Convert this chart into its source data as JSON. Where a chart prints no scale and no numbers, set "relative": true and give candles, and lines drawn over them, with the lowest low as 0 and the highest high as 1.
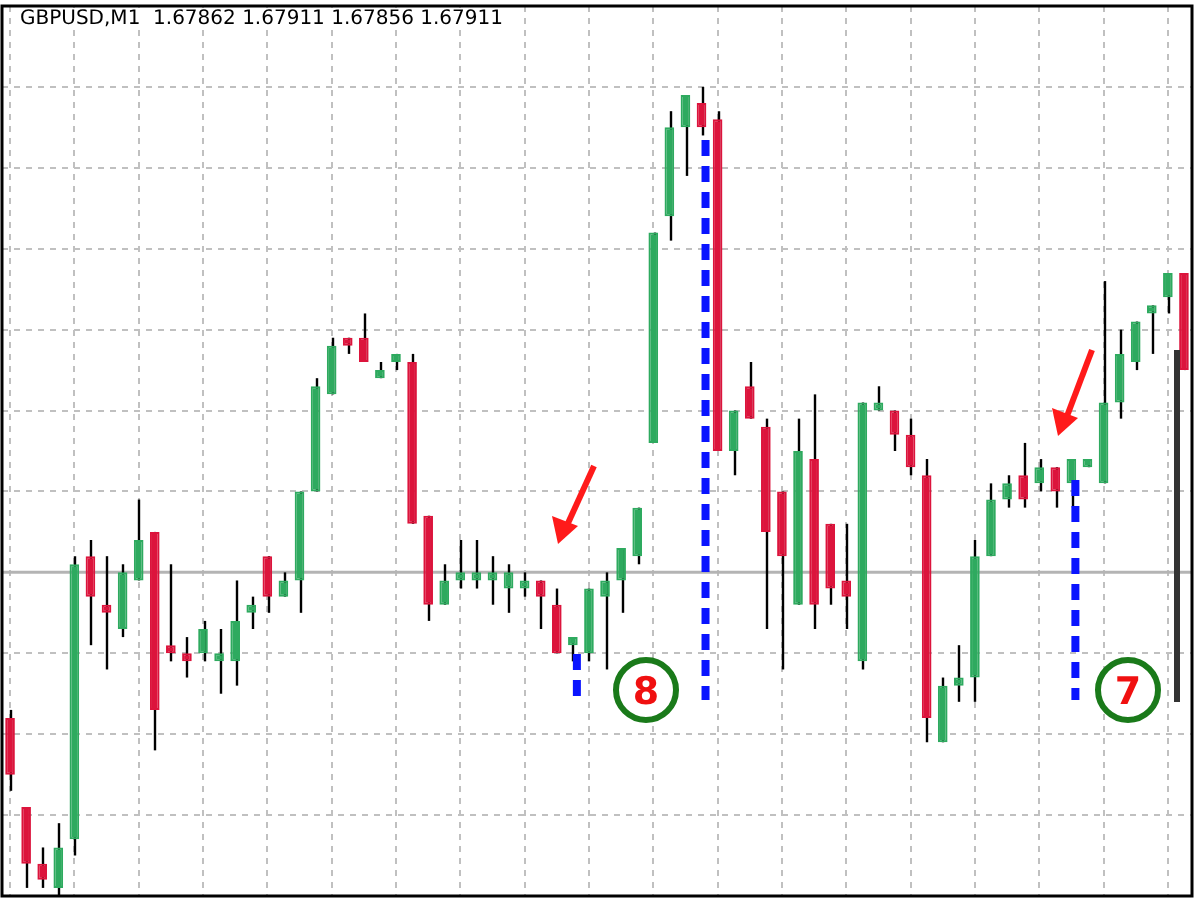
{
  "chart_data": {
    "type": "candlestick",
    "title": "GBPUSD,M1  1.67862 1.67911 1.67856 1.67911",
    "relative": true,
    "grid": true,
    "tick_labels": false,
    "categories": [
      null,
      null,
      null,
      null,
      null,
      null,
      null,
      null,
      null,
      null,
      null,
      null,
      null,
      null,
      null,
      null,
      null,
      null,
      null,
      null,
      null,
      null,
      null,
      null,
      null,
      null,
      null,
      null,
      null,
      null,
      null,
      null,
      null,
      null,
      null,
      null,
      null,
      null,
      null,
      null,
      null,
      null,
      null,
      null,
      null,
      null,
      null,
      null,
      null,
      null,
      null,
      null,
      null,
      null,
      null,
      null,
      null,
      null,
      null,
      null,
      null,
      null,
      null,
      null,
      null,
      null,
      null,
      null,
      null,
      null,
      null,
      null,
      null,
      null
    ],
    "ohlc": [
      [
        0.22,
        0.23,
        0.13,
        0.15
      ],
      [
        0.11,
        0.11,
        0.01,
        0.04
      ],
      [
        0.04,
        0.06,
        0.01,
        0.02
      ],
      [
        0.01,
        0.09,
        0,
        0.06
      ],
      [
        0.07,
        0.42,
        0.05,
        0.41
      ],
      [
        0.42,
        0.44,
        0.31,
        0.37
      ],
      [
        0.36,
        0.42,
        0.28,
        0.35
      ],
      [
        0.33,
        0.41,
        0.32,
        0.4
      ],
      [
        0.39,
        0.49,
        0.39,
        0.44
      ],
      [
        0.45,
        0.45,
        0.18,
        0.23
      ],
      [
        0.31,
        0.41,
        0.29,
        0.3
      ],
      [
        0.3,
        0.32,
        0.27,
        0.29
      ],
      [
        0.3,
        0.34,
        0.29,
        0.33
      ],
      [
        0.29,
        0.33,
        0.25,
        0.3
      ],
      [
        0.29,
        0.39,
        0.26,
        0.34
      ],
      [
        0.35,
        0.37,
        0.33,
        0.36
      ],
      [
        0.42,
        0.42,
        0.35,
        0.37
      ],
      [
        0.37,
        0.4,
        0.37,
        0.39
      ],
      [
        0.39,
        0.5,
        0.35,
        0.5
      ],
      [
        0.5,
        0.64,
        0.5,
        0.63
      ],
      [
        0.62,
        0.69,
        0.62,
        0.68
      ],
      [
        0.69,
        0.69,
        0.67,
        0.68
      ],
      [
        0.69,
        0.72,
        0.66,
        0.66
      ],
      [
        0.64,
        0.66,
        0.64,
        0.65
      ],
      [
        0.66,
        0.67,
        0.65,
        0.67
      ],
      [
        0.66,
        0.67,
        0.46,
        0.46
      ],
      [
        0.47,
        0.47,
        0.34,
        0.36
      ],
      [
        0.36,
        0.41,
        0.36,
        0.39
      ],
      [
        0.39,
        0.44,
        0.38,
        0.4
      ],
      [
        0.39,
        0.44,
        0.38,
        0.4
      ],
      [
        0.39,
        0.42,
        0.36,
        0.4
      ],
      [
        0.38,
        0.41,
        0.35,
        0.4
      ],
      [
        0.38,
        0.4,
        0.37,
        0.39
      ],
      [
        0.39,
        0.39,
        0.33,
        0.37
      ],
      [
        0.36,
        0.38,
        0.3,
        0.3
      ],
      [
        0.31,
        0.32,
        0.29,
        0.32
      ],
      [
        0.3,
        0.38,
        0.29,
        0.38
      ],
      [
        0.37,
        0.4,
        0.28,
        0.39
      ],
      [
        0.39,
        0.43,
        0.35,
        0.43
      ],
      [
        0.42,
        0.48,
        0.41,
        0.48
      ],
      [
        0.56,
        0.82,
        0.56,
        0.82
      ],
      [
        0.84,
        0.97,
        0.81,
        0.95
      ],
      [
        0.95,
        0.99,
        0.89,
        0.99
      ],
      [
        0.98,
        1,
        0.94,
        0.95
      ],
      [
        0.96,
        0.97,
        0.55,
        0.55
      ],
      [
        0.55,
        0.6,
        0.52,
        0.6
      ],
      [
        0.63,
        0.66,
        0.59,
        0.59
      ],
      [
        0.58,
        0.59,
        0.33,
        0.45
      ],
      [
        0.5,
        0.5,
        0.28,
        0.42
      ],
      [
        0.36,
        0.59,
        0.36,
        0.55
      ],
      [
        0.54,
        0.62,
        0.33,
        0.36
      ],
      [
        0.46,
        0.46,
        0.36,
        0.38
      ],
      [
        0.39,
        0.46,
        0.33,
        0.37
      ],
      [
        0.29,
        0.61,
        0.28,
        0.61
      ],
      [
        0.6,
        0.63,
        0.6,
        0.61
      ],
      [
        0.6,
        0.6,
        0.55,
        0.57
      ],
      [
        0.57,
        0.59,
        0.52,
        0.53
      ],
      [
        0.52,
        0.54,
        0.19,
        0.22
      ],
      [
        0.19,
        0.27,
        0.19,
        0.26
      ],
      [
        0.26,
        0.31,
        0.24,
        0.27
      ],
      [
        0.27,
        0.44,
        0.24,
        0.42
      ],
      [
        0.42,
        0.51,
        0.42,
        0.49
      ],
      [
        0.49,
        0.52,
        0.48,
        0.51
      ],
      [
        0.52,
        0.56,
        0.48,
        0.49
      ],
      [
        0.51,
        0.54,
        0.5,
        0.53
      ],
      [
        0.53,
        0.53,
        0.48,
        0.5
      ],
      [
        0.51,
        0.54,
        0.48,
        0.54
      ],
      [
        0.53,
        0.54,
        0.53,
        0.54
      ],
      [
        0.51,
        0.76,
        0.51,
        0.61
      ],
      [
        0.61,
        0.7,
        0.59,
        0.67
      ],
      [
        0.66,
        0.71,
        0.65,
        0.71
      ],
      [
        0.72,
        0.73,
        0.67,
        0.73
      ],
      [
        0.74,
        0.77,
        0.72,
        0.77
      ],
      [
        0.77,
        0.77,
        0.65,
        0.65
      ]
    ],
    "colors": [
      "#dc143c",
      "#dc143c",
      "#dc143c",
      "#2eaa5f",
      "#2eaa5f",
      "#dc143c",
      "#dc143c",
      "#2eaa5f",
      "#2eaa5f",
      "#dc143c",
      "#dc143c",
      "#dc143c",
      "#2eaa5f",
      "#2eaa5f",
      "#2eaa5f",
      "#2eaa5f",
      "#dc143c",
      "#2eaa5f",
      "#2eaa5f",
      "#2eaa5f",
      "#2eaa5f",
      "#dc143c",
      "#dc143c",
      "#2eaa5f",
      "#2eaa5f",
      "#dc143c",
      "#dc143c",
      "#2eaa5f",
      "#2eaa5f",
      "#2eaa5f",
      "#2eaa5f",
      "#2eaa5f",
      "#2eaa5f",
      "#dc143c",
      "#dc143c",
      "#2eaa5f",
      "#2eaa5f",
      "#2eaa5f",
      "#2eaa5f",
      "#2eaa5f",
      "#2eaa5f",
      "#2eaa5f",
      "#2eaa5f",
      "#dc143c",
      "#dc143c",
      "#2eaa5f",
      "#dc143c",
      "#dc143c",
      "#dc143c",
      "#2eaa5f",
      "#dc143c",
      "#dc143c",
      "#dc143c",
      "#2eaa5f",
      "#2eaa5f",
      "#dc143c",
      "#dc143c",
      "#dc143c",
      "#2eaa5f",
      "#2eaa5f",
      "#2eaa5f",
      "#2eaa5f",
      "#2eaa5f",
      "#dc143c",
      "#2eaa5f",
      "#dc143c",
      "#2eaa5f",
      "#2eaa5f",
      "#2eaa5f",
      "#2eaa5f",
      "#2eaa5f",
      "#2eaa5f",
      "#2eaa5f",
      "#dc143c"
    ],
    "ref_lines": [
      {
        "axis": "y",
        "value": 0.4,
        "color": "#b4b4b4"
      }
    ],
    "annotations": [
      "8",
      "7"
    ]
  }
}
